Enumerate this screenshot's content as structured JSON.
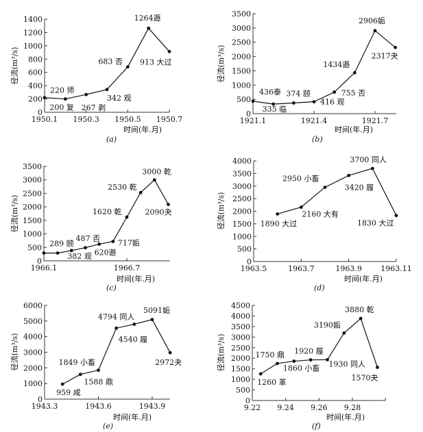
{
  "chart_data": [
    {
      "type": "line",
      "title": "(a)",
      "xlabel": "时间(年.月)",
      "ylabel": "径流(m³/s)",
      "ylim": [
        0,
        1400
      ],
      "yticks": [
        0,
        200,
        400,
        600,
        800,
        1000,
        1200,
        1400
      ],
      "xticks": [
        {
          "x": 1,
          "label": "1950.1"
        },
        {
          "x": 3,
          "label": "1950.3"
        },
        {
          "x": 5,
          "label": "1950.5"
        },
        {
          "x": 7,
          "label": "1950.7"
        }
      ],
      "points": [
        {
          "x": 1,
          "y": 220,
          "label": "220 师"
        },
        {
          "x": 2,
          "y": 200,
          "label": "200 复"
        },
        {
          "x": 3,
          "y": 267,
          "label": "267 剥"
        },
        {
          "x": 4,
          "y": 342,
          "label": "342 观"
        },
        {
          "x": 5,
          "y": 683,
          "label": "683 否"
        },
        {
          "x": 6,
          "y": 1264,
          "label": "1264遯"
        },
        {
          "x": 7,
          "y": 913,
          "label": "913 大过"
        }
      ]
    },
    {
      "type": "line",
      "title": "(b)",
      "xlabel": "时间(年.月)",
      "ylabel": "径流(m³/s)",
      "ylim": [
        0,
        3500
      ],
      "yticks": [
        0,
        500,
        1000,
        1500,
        2000,
        2500,
        3000,
        3500
      ],
      "xticks": [
        {
          "x": 1,
          "label": "1921.1"
        },
        {
          "x": 4,
          "label": "1921.4"
        },
        {
          "x": 7,
          "label": "1921.7"
        }
      ],
      "points": [
        {
          "x": 1,
          "y": 436,
          "label": "436泰"
        },
        {
          "x": 2,
          "y": 335,
          "label": "335 临"
        },
        {
          "x": 3,
          "y": 374,
          "label": "374 颐"
        },
        {
          "x": 4,
          "y": 416,
          "label": "416 观"
        },
        {
          "x": 5,
          "y": 755,
          "label": "755 否"
        },
        {
          "x": 6,
          "y": 1434,
          "label": "1434遯"
        },
        {
          "x": 7,
          "y": 2906,
          "label": "2906姤"
        },
        {
          "x": 8,
          "y": 2317,
          "label": "2317夬"
        }
      ]
    },
    {
      "type": "line",
      "title": "(c)",
      "xlabel": "时间(年.月)",
      "ylabel": "径流(m³/s)",
      "ylim": [
        0,
        3500
      ],
      "yticks": [
        0,
        500,
        1000,
        1500,
        2000,
        2500,
        3000,
        3500
      ],
      "xticks": [
        {
          "x": 1,
          "label": "1966.1"
        },
        {
          "x": 7,
          "label": "1966.7"
        }
      ],
      "points": [
        {
          "x": 1,
          "y": 289,
          "label": ""
        },
        {
          "x": 2,
          "y": 289,
          "label": "289 颐"
        },
        {
          "x": 3,
          "y": 382,
          "label": "382 观"
        },
        {
          "x": 4,
          "y": 487,
          "label": "487 否"
        },
        {
          "x": 5,
          "y": 620,
          "label": "620遯"
        },
        {
          "x": 6,
          "y": 717,
          "label": "717姤"
        },
        {
          "x": 7,
          "y": 1620,
          "label": "1620 乾"
        },
        {
          "x": 8,
          "y": 2530,
          "label": "2530 乾"
        },
        {
          "x": 9,
          "y": 3000,
          "label": "3000 乾"
        },
        {
          "x": 10,
          "y": 2090,
          "label": "2090夬"
        }
      ]
    },
    {
      "type": "line",
      "title": "(d)",
      "xlabel": "时间(年.月)",
      "ylabel": "径流(m³/s)",
      "ylim": [
        0,
        4000
      ],
      "yticks": [
        0,
        500,
        1000,
        1500,
        2000,
        2500,
        3000,
        3500,
        4000
      ],
      "xticks": [
        {
          "x": 5,
          "label": "1963.5"
        },
        {
          "x": 7,
          "label": "1963.7"
        },
        {
          "x": 9,
          "label": "1963.9"
        },
        {
          "x": 11,
          "label": "1963.11"
        }
      ],
      "points": [
        {
          "x": 6,
          "y": 1890,
          "label": "1890 大过"
        },
        {
          "x": 7,
          "y": 2160,
          "label": "2160 大有"
        },
        {
          "x": 8,
          "y": 2950,
          "label": "2950 小畜"
        },
        {
          "x": 9,
          "y": 3420,
          "label": "3420 履"
        },
        {
          "x": 10,
          "y": 3700,
          "label": "3700 同人"
        },
        {
          "x": 11,
          "y": 1830,
          "label": "1830 大过"
        }
      ]
    },
    {
      "type": "line",
      "title": "(e)",
      "xlabel": "时间(年.月)",
      "ylabel": "径流(m³/s)",
      "ylim": [
        0,
        6000
      ],
      "yticks": [
        0,
        1000,
        2000,
        3000,
        4000,
        5000,
        6000
      ],
      "xticks": [
        {
          "x": 3,
          "label": "1943.3"
        },
        {
          "x": 6,
          "label": "1943.6"
        },
        {
          "x": 9,
          "label": "1943.9"
        }
      ],
      "points": [
        {
          "x": 4,
          "y": 959,
          "label": "959 咸"
        },
        {
          "x": 5,
          "y": 1588,
          "label": "1588 鼎"
        },
        {
          "x": 6,
          "y": 1849,
          "label": "1849 小畜"
        },
        {
          "x": 7,
          "y": 4540,
          "label": "4540 履"
        },
        {
          "x": 8,
          "y": 4794,
          "label": "4794 同人"
        },
        {
          "x": 9,
          "y": 5091,
          "label": "5091姤"
        },
        {
          "x": 10,
          "y": 2972,
          "label": "2972夬"
        }
      ]
    },
    {
      "type": "line",
      "title": "(f)",
      "xlabel": "时间(年.月)",
      "ylabel": "径流(m³/s)",
      "ylim": [
        0,
        4500
      ],
      "yticks": [
        0,
        500,
        1000,
        1500,
        2000,
        2500,
        3000,
        3500,
        4000,
        4500
      ],
      "xticks": [
        {
          "x": 22,
          "label": "9.22"
        },
        {
          "x": 24,
          "label": "9.24"
        },
        {
          "x": 26,
          "label": "9.26"
        },
        {
          "x": 28,
          "label": "9.28"
        }
      ],
      "points": [
        {
          "x": 22.5,
          "y": 1260,
          "label": "1260 革"
        },
        {
          "x": 23.5,
          "y": 1750,
          "label": "1750 鼎"
        },
        {
          "x": 24.5,
          "y": 1860,
          "label": "1860 小畜"
        },
        {
          "x": 25.5,
          "y": 1920,
          "label": "1920 履"
        },
        {
          "x": 26.5,
          "y": 1930,
          "label": "1930 同人"
        },
        {
          "x": 27.5,
          "y": 3190,
          "label": "3190姤"
        },
        {
          "x": 28.5,
          "y": 3880,
          "label": "3880 乾"
        },
        {
          "x": 29.5,
          "y": 1570,
          "label": "1570夬"
        }
      ]
    }
  ]
}
